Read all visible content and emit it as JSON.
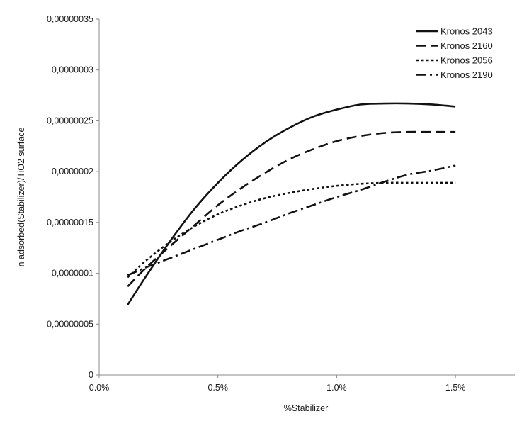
{
  "chart_data": {
    "type": "line",
    "title": "",
    "xlabel": "%Stabilizer",
    "ylabel": "n adsorbed(Stabilizer)/TiO2 surface",
    "xlim": [
      0.0,
      1.75
    ],
    "ylim": [
      0,
      3.5e-07
    ],
    "xticks": [
      0.0,
      0.5,
      1.0,
      1.5
    ],
    "xtick_labels": [
      "0.0%",
      "0.5%",
      "1.0%",
      "1.5%"
    ],
    "yticks": [
      0,
      5e-08,
      1e-07,
      1.5e-07,
      2e-07,
      2.5e-07,
      3e-07,
      3.5e-07
    ],
    "ytick_labels": [
      "0",
      "0,00000005",
      "0,0000001",
      "0,00000015",
      "0,0000002",
      "0,00000025",
      "0,0000003",
      "0,00000035"
    ],
    "grid": false,
    "legend_position": "top-right",
    "series": [
      {
        "name": "Kronos 2043",
        "dash": "solid",
        "x": [
          0.12,
          0.2,
          0.3,
          0.4,
          0.5,
          0.6,
          0.7,
          0.8,
          0.9,
          1.0,
          1.1,
          1.2,
          1.3,
          1.4,
          1.5
        ],
        "y": [
          6.9e-08,
          9.8e-08,
          1.32e-07,
          1.63e-07,
          1.89e-07,
          2.11e-07,
          2.29e-07,
          2.43e-07,
          2.54e-07,
          2.61e-07,
          2.66e-07,
          2.67e-07,
          2.67e-07,
          2.66e-07,
          2.64e-07
        ]
      },
      {
        "name": "Kronos 2160",
        "dash": "dashed",
        "x": [
          0.12,
          0.2,
          0.3,
          0.4,
          0.5,
          0.6,
          0.7,
          0.8,
          0.9,
          1.0,
          1.1,
          1.2,
          1.3,
          1.4,
          1.5
        ],
        "y": [
          8.7e-08,
          1.06e-07,
          1.27e-07,
          1.47e-07,
          1.67e-07,
          1.84e-07,
          1.99e-07,
          2.12e-07,
          2.22e-07,
          2.3e-07,
          2.35e-07,
          2.38e-07,
          2.39e-07,
          2.39e-07,
          2.39e-07
        ]
      },
      {
        "name": "Kronos 2056",
        "dash": "dotted",
        "x": [
          0.12,
          0.2,
          0.3,
          0.4,
          0.5,
          0.6,
          0.7,
          0.8,
          0.9,
          1.0,
          1.1,
          1.2,
          1.3,
          1.4,
          1.5
        ],
        "y": [
          9.6e-08,
          1.13e-07,
          1.31e-07,
          1.46e-07,
          1.58e-07,
          1.67e-07,
          1.74e-07,
          1.79e-07,
          1.83e-07,
          1.86e-07,
          1.88e-07,
          1.89e-07,
          1.89e-07,
          1.89e-07,
          1.89e-07
        ]
      },
      {
        "name": "Kronos 2190",
        "dash": "dash-dot",
        "x": [
          0.12,
          0.2,
          0.3,
          0.4,
          0.5,
          0.6,
          0.7,
          0.8,
          0.9,
          1.0,
          1.1,
          1.2,
          1.3,
          1.4,
          1.5
        ],
        "y": [
          9.8e-08,
          1.06e-07,
          1.15e-07,
          1.24e-07,
          1.33e-07,
          1.42e-07,
          1.5e-07,
          1.59e-07,
          1.67e-07,
          1.75e-07,
          1.82e-07,
          1.9e-07,
          1.97e-07,
          2.01e-07,
          2.06e-07
        ]
      }
    ]
  }
}
